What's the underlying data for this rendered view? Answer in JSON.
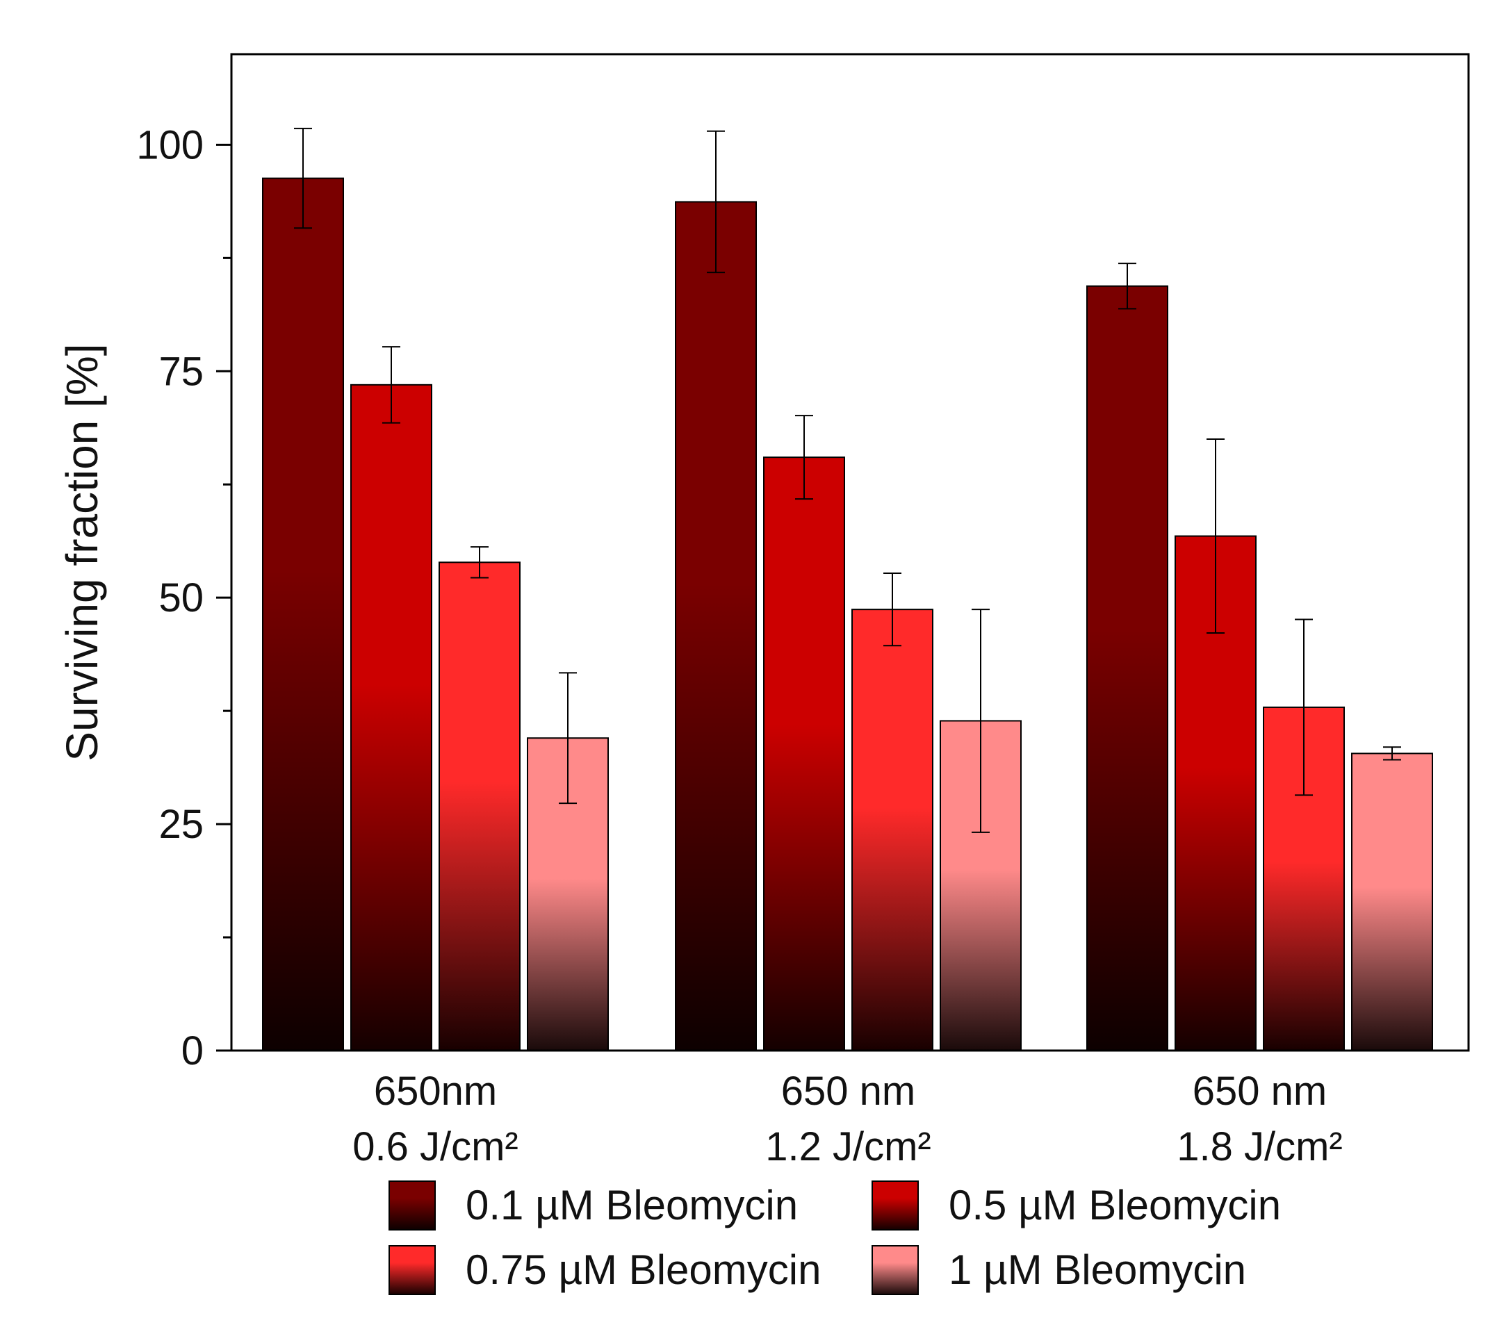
{
  "chart_data": {
    "type": "bar",
    "title": "",
    "xlabel": "",
    "ylabel": "Surviving fraction [%]",
    "ylim": [
      0,
      110
    ],
    "yticks": [
      0,
      25,
      50,
      75,
      100
    ],
    "yticks_minor": [
      12.5,
      37.5,
      62.5,
      87.5
    ],
    "categories": [
      [
        "650nm",
        "0.6 J/cm²"
      ],
      [
        "650 nm",
        "1.2 J/cm²"
      ],
      [
        "650 nm",
        "1.8 J/cm²"
      ]
    ],
    "series": [
      {
        "name": "0.1 µM Bleomycin",
        "values": [
          96.3,
          93.7,
          84.4
        ],
        "errors": [
          5.5,
          7.8,
          2.5
        ],
        "color_top": "#7a0000",
        "color_bottom": "#0d0000"
      },
      {
        "name": "0.5 µM Bleomycin",
        "values": [
          73.5,
          65.5,
          56.8
        ],
        "errors": [
          4.2,
          4.6,
          10.7
        ],
        "color_top": "#cc0000",
        "color_bottom": "#140000"
      },
      {
        "name": "0.75 µM Bleomycin",
        "values": [
          53.9,
          48.7,
          37.9
        ],
        "errors": [
          1.7,
          4.0,
          9.7
        ],
        "color_top": "#ff2a2a",
        "color_bottom": "#180000"
      },
      {
        "name": "1 µM Bleomycin",
        "values": [
          34.5,
          36.4,
          32.8
        ],
        "errors": [
          7.2,
          12.3,
          0.7
        ],
        "color_top": "#ff8a8a",
        "color_bottom": "#1a0a0a"
      }
    ],
    "legend_position": "bottom"
  }
}
